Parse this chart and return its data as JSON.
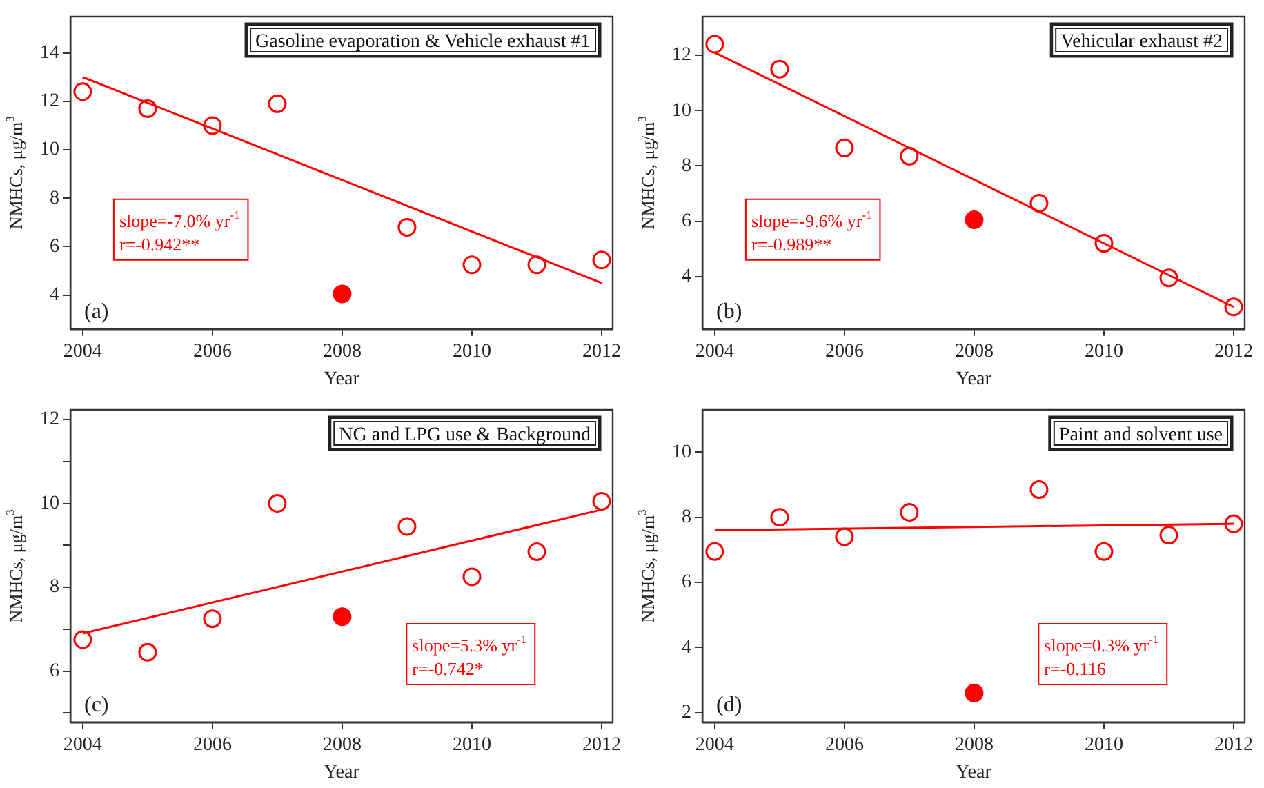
{
  "chart_data": [
    {
      "type": "scatter",
      "title": "Gasoline evaporation & Vehicle exhaust #1",
      "xlabel": "Year",
      "ylabel": "NMHCs, μg/m$^{3}$",
      "marker": "circle",
      "grid": false,
      "xlim": [
        2003.81,
        2012.17
      ],
      "xticks": [
        2004,
        2006,
        2008,
        2010,
        2012
      ],
      "ylim": [
        2.6,
        15.5
      ],
      "yticks": [
        4,
        6,
        8,
        10,
        12,
        14
      ],
      "annotations": [
        "(a)",
        "slope=-7.0% yr$^{-1}$",
        "r=-0.942**"
      ],
      "series": [
        {
          "color": "#ff0000",
          "x": [
            2004,
            2005,
            2006,
            2007,
            2009,
            2010,
            2011,
            2012
          ],
          "values": [
            12.4,
            11.7,
            11.0,
            11.9,
            6.8,
            5.25,
            5.25,
            5.45
          ]
        },
        {
          "color": "#ff0000",
          "x": [
            2008
          ],
          "values": [
            4.05
          ]
        },
        {
          "type": "line",
          "marker": "none",
          "color": "#ff0000",
          "x": [
            2004,
            2012
          ],
          "values": [
            13.0,
            4.5
          ]
        }
      ]
    },
    {
      "type": "scatter",
      "title": "Vehicular exhaust #2",
      "xlabel": "Year",
      "ylabel": "NMHCs, μg/m$^{3}$",
      "marker": "circle",
      "grid": false,
      "xlim": [
        2003.81,
        2012.17
      ],
      "xticks": [
        2004,
        2006,
        2008,
        2010,
        2012
      ],
      "ylim": [
        2.1,
        13.4
      ],
      "yticks": [
        4,
        6,
        8,
        10,
        12
      ],
      "annotations": [
        "(b)",
        "slope=-9.6% yr$^{-1}$",
        "r=-0.989**"
      ],
      "series": [
        {
          "color": "#ff0000",
          "x": [
            2004,
            2005,
            2006,
            2007,
            2009,
            2010,
            2011,
            2012
          ],
          "values": [
            12.4,
            11.5,
            8.65,
            8.35,
            6.65,
            5.2,
            3.95,
            2.9
          ]
        },
        {
          "color": "#ff0000",
          "x": [
            2008
          ],
          "values": [
            6.05
          ]
        },
        {
          "type": "line",
          "marker": "none",
          "color": "#ff0000",
          "x": [
            2004,
            2012
          ],
          "values": [
            12.1,
            2.9
          ]
        }
      ]
    },
    {
      "type": "scatter",
      "title": "NG and LPG use & Background",
      "xlabel": "Year",
      "ylabel": "NMHCs, μg/m$^{3}$",
      "marker": "circle",
      "grid": false,
      "xlim": [
        2003.81,
        2012.17
      ],
      "xticks": [
        2004,
        2006,
        2008,
        2010,
        2012
      ],
      "ylim": [
        4.78,
        12.23
      ],
      "yticks": [
        {
          "value": 5,
          "label": null
        },
        6,
        {
          "value": 7,
          "label": null
        },
        8,
        {
          "value": 9,
          "label": null
        },
        10,
        {
          "value": 11,
          "label": null
        },
        12
      ],
      "annotations": [
        "(c)",
        "slope=5.3% yr$^{-1}$",
        "r=-0.742*"
      ],
      "series": [
        {
          "color": "#ff0000",
          "x": [
            2004,
            2005,
            2006,
            2007,
            2009,
            2010,
            2011,
            2012
          ],
          "values": [
            6.75,
            6.45,
            7.25,
            10.0,
            9.45,
            8.25,
            8.85,
            10.05
          ]
        },
        {
          "color": "#ff0000",
          "x": [
            2008
          ],
          "values": [
            7.3
          ]
        },
        {
          "type": "line",
          "marker": "none",
          "color": "#ff0000",
          "x": [
            2004,
            2012
          ],
          "values": [
            6.9,
            9.85
          ]
        }
      ]
    },
    {
      "type": "scatter",
      "title": "Paint and solvent use",
      "xlabel": "Year",
      "ylabel": "NMHCs, μg/m$^{3}$",
      "marker": "circle",
      "grid": false,
      "xlim": [
        2003.81,
        2012.17
      ],
      "xticks": [
        2004,
        2006,
        2008,
        2010,
        2012
      ],
      "ylim": [
        1.7,
        11.3
      ],
      "yticks": [
        2,
        4,
        6,
        8,
        10
      ],
      "annotations": [
        "(d)",
        "slope=0.3% yr$^{-1}$",
        "r=-0.116"
      ],
      "series": [
        {
          "color": "#ff0000",
          "x": [
            2004,
            2005,
            2006,
            2007,
            2009,
            2010,
            2011,
            2012
          ],
          "values": [
            6.95,
            8.0,
            7.4,
            8.15,
            8.85,
            6.95,
            7.45,
            7.8
          ]
        },
        {
          "color": "#ff0000",
          "x": [
            2008
          ],
          "values": [
            2.6
          ]
        },
        {
          "type": "line",
          "marker": "none",
          "color": "#ff0000",
          "x": [
            2004,
            2012
          ],
          "values": [
            7.6,
            7.8
          ]
        }
      ]
    }
  ]
}
